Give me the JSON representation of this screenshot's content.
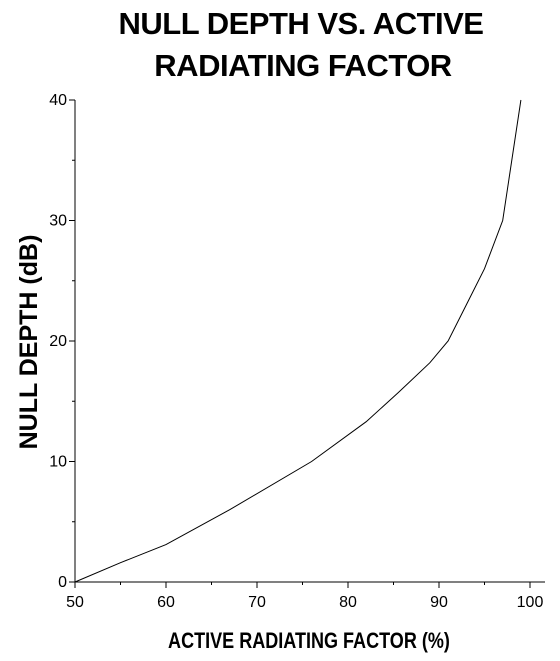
{
  "chart_data": {
    "type": "line",
    "title_lines": [
      "NULL DEPTH VS. ACTIVE",
      "RADIATING FACTOR"
    ],
    "xlabel": "ACTIVE RADIATING FACTOR (%)",
    "ylabel": "NULL DEPTH (dB)",
    "xlim": [
      50,
      100
    ],
    "ylim": [
      0,
      40
    ],
    "x_ticks": [
      "50",
      "60",
      "70",
      "80",
      "90",
      "100"
    ],
    "y_ticks": [
      "0",
      "10",
      "20",
      "30",
      "40"
    ],
    "grid": false,
    "legend": "none",
    "line_color": "#000000",
    "series": [
      {
        "x": [
          50,
          55,
          60,
          67,
          76,
          82,
          85.5,
          89,
          91,
          93,
          95,
          97,
          99
        ],
        "y": [
          0,
          1.6,
          3.1,
          6,
          10,
          13.3,
          15.7,
          18.2,
          20,
          23,
          26,
          30,
          40
        ]
      }
    ]
  }
}
